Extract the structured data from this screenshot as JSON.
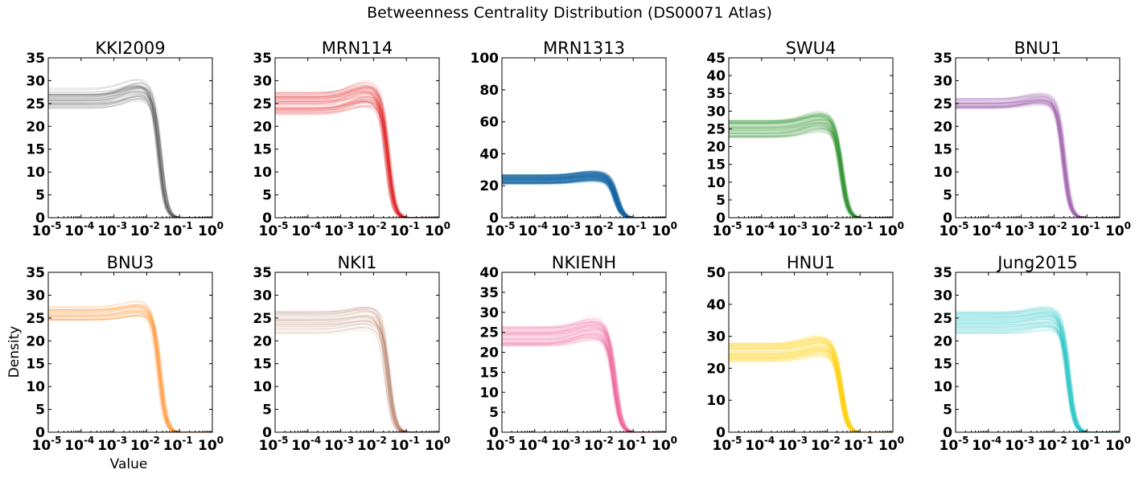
{
  "chart_data": {
    "type": "line",
    "title": "Betweenness Centrality Distribution (DS00071 Atlas)",
    "xlabel": "Value",
    "ylabel": "Density",
    "xscale": "log",
    "xlim": [
      1e-05,
      1
    ],
    "xticks": [
      {
        "base": "10",
        "exp": "-5"
      },
      {
        "base": "10",
        "exp": "-4"
      },
      {
        "base": "10",
        "exp": "-3"
      },
      {
        "base": "10",
        "exp": "-2"
      },
      {
        "base": "10",
        "exp": "-1"
      },
      {
        "base": "10",
        "exp": "0"
      }
    ],
    "grid": false,
    "legend": "none",
    "panels": [
      {
        "name": "KKI2009",
        "color": "#555555",
        "ylim": [
          0,
          35
        ],
        "yticks": [
          0,
          5,
          10,
          15,
          20,
          25,
          30,
          35
        ],
        "n_curves": 40,
        "plateau": 26,
        "spread": 2.5,
        "peak_x": 0.006,
        "peak": 28,
        "end_x": 0.1,
        "alpha": 0.16
      },
      {
        "name": "MRN114",
        "color": "#e31a1c",
        "ylim": [
          0,
          35
        ],
        "yticks": [
          0,
          5,
          10,
          15,
          20,
          25,
          30,
          35
        ],
        "n_curves": 110,
        "plateau": 25,
        "spread": 2.5,
        "peak_x": 0.006,
        "peak": 27,
        "end_x": 0.12,
        "alpha": 0.07
      },
      {
        "name": "MRN1313",
        "color": "#1f77b4",
        "ylim": [
          0,
          100
        ],
        "yticks": [
          0,
          20,
          40,
          60,
          80,
          100
        ],
        "n_curves": 400,
        "plateau": 24,
        "spread": 3,
        "peak_x": 0.006,
        "peak": 26,
        "end_x": 0.15,
        "alpha": 0.05
      },
      {
        "name": "SWU4",
        "color": "#33a02c",
        "ylim": [
          0,
          45
        ],
        "yticks": [
          0,
          5,
          10,
          15,
          20,
          25,
          30,
          35,
          40,
          45
        ],
        "n_curves": 160,
        "plateau": 25,
        "spread": 2.5,
        "peak_x": 0.006,
        "peak": 27,
        "end_x": 0.12,
        "alpha": 0.06
      },
      {
        "name": "BNU1",
        "color": "#984ea3",
        "ylim": [
          0,
          35
        ],
        "yticks": [
          0,
          5,
          10,
          15,
          20,
          25,
          30,
          35
        ],
        "n_curves": 90,
        "plateau": 25,
        "spread": 1.2,
        "peak_x": 0.004,
        "peak": 26,
        "end_x": 0.1,
        "alpha": 0.07
      },
      {
        "name": "BNU3",
        "color": "#ff8c1a",
        "ylim": [
          0,
          35
        ],
        "yticks": [
          0,
          5,
          10,
          15,
          20,
          25,
          30,
          35
        ],
        "n_curves": 45,
        "plateau": 26,
        "spread": 1.6,
        "peak_x": 0.006,
        "peak": 27,
        "end_x": 0.1,
        "alpha": 0.11
      },
      {
        "name": "NKI1",
        "color": "#a0522d",
        "ylim": [
          0,
          35
        ],
        "yticks": [
          0,
          5,
          10,
          15,
          20,
          25,
          30,
          35
        ],
        "n_curves": 40,
        "plateau": 24,
        "spread": 2.5,
        "peak_x": 0.006,
        "peak": 25,
        "end_x": 0.12,
        "alpha": 0.09
      },
      {
        "name": "NKIENH",
        "color": "#f768a1",
        "ylim": [
          0,
          40
        ],
        "yticks": [
          0,
          5,
          10,
          15,
          20,
          25,
          30,
          35,
          40
        ],
        "n_curves": 120,
        "plateau": 24,
        "spread": 2.5,
        "peak_x": 0.006,
        "peak": 26,
        "end_x": 0.12,
        "alpha": 0.07
      },
      {
        "name": "HNU1",
        "color": "#ffd700",
        "ylim": [
          0,
          50
        ],
        "yticks": [
          0,
          10,
          20,
          30,
          40,
          50
        ],
        "n_curves": 140,
        "plateau": 25,
        "spread": 3,
        "peak_x": 0.006,
        "peak": 27,
        "end_x": 0.12,
        "alpha": 0.07
      },
      {
        "name": "Jung2015",
        "color": "#17c0c0",
        "ylim": [
          0,
          35
        ],
        "yticks": [
          0,
          5,
          10,
          15,
          20,
          25,
          30,
          35
        ],
        "n_curves": 110,
        "plateau": 24,
        "spread": 2.5,
        "peak_x": 0.006,
        "peak": 25,
        "end_x": 0.12,
        "alpha": 0.07
      }
    ]
  }
}
